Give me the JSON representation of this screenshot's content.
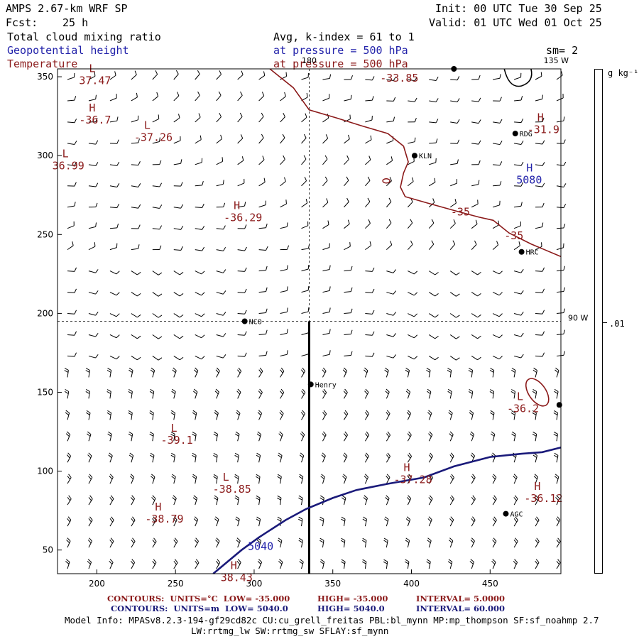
{
  "header": {
    "model": "AMPS 2.67-km WRF SP",
    "fcst_label": "Fcst:",
    "fcst_value": "25 h",
    "init": "Init: 00 UTC Tue 30 Sep 25",
    "valid": "Valid: 01 UTC Wed 01 Oct 25",
    "field1": "Total cloud mixing ratio",
    "field2": "Geopotential height",
    "field3": "Temperature",
    "avg": "Avg, k-index =  61 to   1",
    "pres1": "at pressure =  500 hPa",
    "pres2": "at pressure =  500 hPa",
    "sm": "sm= 2"
  },
  "colors": {
    "temperature": "#8b1a1a",
    "height": "#1a1a7a",
    "text_blue": "#2222aa"
  },
  "chart_data": {
    "type": "contour-map",
    "x_axis": {
      "range": [
        175,
        495
      ],
      "ticks": [
        200,
        250,
        300,
        350,
        400,
        450
      ]
    },
    "y_axis": {
      "range": [
        35,
        355
      ],
      "ticks": [
        50,
        100,
        150,
        200,
        250,
        300,
        350
      ]
    },
    "crosshair": {
      "x": 335,
      "y": 195
    },
    "meridians": [
      {
        "label": "180",
        "x": 335,
        "y": 355
      },
      {
        "label": "135 W",
        "x": 492,
        "y": 355
      },
      {
        "label": "90 W",
        "x": 495,
        "y": 195
      }
    ],
    "section_line": {
      "x": 335,
      "y_from": 195,
      "y_to": 35
    },
    "temperature_contour_value": -35,
    "height_contour_value": 5040,
    "temperature_line": [
      [
        310,
        355
      ],
      [
        325,
        343
      ],
      [
        335,
        329
      ],
      [
        352,
        324
      ],
      [
        368,
        319
      ],
      [
        385,
        314
      ],
      [
        395,
        306
      ],
      [
        398,
        296
      ],
      [
        395,
        289
      ],
      [
        393,
        280
      ],
      [
        396,
        274
      ],
      [
        410,
        270
      ],
      [
        428,
        265
      ],
      [
        443,
        261
      ],
      [
        452,
        259
      ],
      [
        462,
        251
      ],
      [
        476,
        244
      ],
      [
        495,
        236
      ]
    ],
    "height_line": [
      [
        274,
        35
      ],
      [
        292,
        50
      ],
      [
        303,
        58
      ],
      [
        320,
        69
      ],
      [
        333,
        76
      ],
      [
        350,
        83
      ],
      [
        365,
        88
      ],
      [
        385,
        92
      ],
      [
        408,
        96
      ],
      [
        427,
        103
      ],
      [
        450,
        109
      ],
      [
        470,
        111
      ],
      [
        483,
        112
      ],
      [
        495,
        115
      ]
    ],
    "stations": [
      {
        "name": "KLN",
        "x": 402,
        "y": 300
      },
      {
        "name": "RDG",
        "x": 466,
        "y": 314
      },
      {
        "name": "HRC",
        "x": 470,
        "y": 239
      },
      {
        "name": "NCO",
        "x": 294,
        "y": 195
      },
      {
        "name": "Henry",
        "x": 336,
        "y": 155
      },
      {
        "name": "AGC",
        "x": 460,
        "y": 73
      },
      {
        "name": "",
        "x": 427,
        "y": 355
      },
      {
        "name": "",
        "x": 494,
        "y": 142
      }
    ],
    "annotations": [
      {
        "kind": "L",
        "text": "L",
        "value": "37.47",
        "x": 195,
        "y": 353,
        "color": "temperature"
      },
      {
        "kind": "",
        "text": "-33.85",
        "value": "",
        "x": 380,
        "y": 347,
        "color": "temperature"
      },
      {
        "kind": "H",
        "text": "H",
        "value": "-36.7",
        "x": 195,
        "y": 328,
        "color": "temperature"
      },
      {
        "kind": "L",
        "text": "L",
        "value": "-37.26",
        "x": 230,
        "y": 317,
        "color": "temperature"
      },
      {
        "kind": "L",
        "text": "L",
        "value": "36.99",
        "x": 178,
        "y": 299,
        "color": "temperature"
      },
      {
        "kind": "H",
        "text": "H",
        "value": "-31.9",
        "x": 480,
        "y": 322,
        "color": "temperature"
      },
      {
        "kind": "H",
        "text": "H",
        "value": "5080",
        "x": 473,
        "y": 290,
        "color": "height"
      },
      {
        "kind": "H",
        "text": "H",
        "value": "-36.29",
        "x": 287,
        "y": 266,
        "color": "temperature"
      },
      {
        "kind": "",
        "text": "-35",
        "value": "",
        "x": 425,
        "y": 262,
        "color": "temperature"
      },
      {
        "kind": "",
        "text": "-35",
        "value": "",
        "x": 459,
        "y": 247,
        "color": "temperature"
      },
      {
        "kind": "L",
        "text": "L",
        "value": "-36.2",
        "x": 467,
        "y": 145,
        "color": "temperature"
      },
      {
        "kind": "L",
        "text": "L",
        "value": "-39.1",
        "x": 247,
        "y": 125,
        "color": "temperature"
      },
      {
        "kind": "H",
        "text": "H",
        "value": "-37.28",
        "x": 395,
        "y": 100,
        "color": "temperature"
      },
      {
        "kind": "L",
        "text": "L",
        "value": "-38.85",
        "x": 280,
        "y": 94,
        "color": "temperature"
      },
      {
        "kind": "H",
        "text": "H",
        "value": "-36.12",
        "x": 478,
        "y": 88,
        "color": "temperature"
      },
      {
        "kind": "H",
        "text": "H",
        "value": "-38.79",
        "x": 237,
        "y": 75,
        "color": "temperature"
      },
      {
        "kind": "",
        "text": "5040",
        "value": "",
        "x": 296,
        "y": 50,
        "color": "height"
      },
      {
        "kind": "H",
        "text": "H",
        "value": "38.43",
        "x": 285,
        "y": 38,
        "color": "temperature"
      }
    ]
  },
  "colorbar": {
    "unit": "g kg⁻¹",
    "tick": ".01"
  },
  "footer": {
    "c1_label": "CONTOURS:",
    "c1_units": "UNITS=°C",
    "c1_low": "LOW=  -35.000",
    "c1_high": "HIGH=  -35.000",
    "c1_int": "INTERVAL=    5.0000",
    "c2_label": "CONTOURS:",
    "c2_units": "UNITS=m",
    "c2_low": "LOW=  5040.0",
    "c2_high": "HIGH=  5040.0",
    "c2_int": "INTERVAL=    60.000",
    "model_info": "Model Info: MPASv8.2.3-194-gf29cd82c CU:cu_grell_freitas PBL:bl_mynn MP:mp_thompson SF:sf_noahmp 2.7",
    "model_info2": "LW:rrtmg_lw SW:rrtmg_sw SFLAY:sf_mynn"
  }
}
